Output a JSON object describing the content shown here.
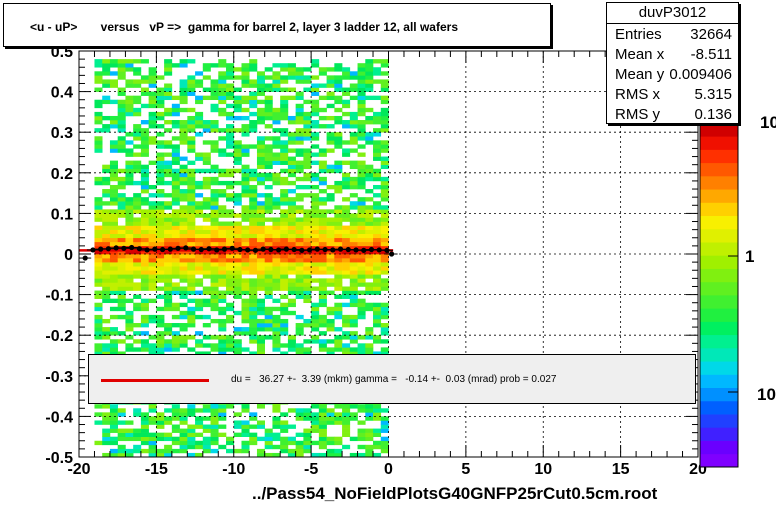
{
  "title": "<u - uP>       versus   vP =>  gamma for barrel 2, layer 3 ladder 12, all wafers",
  "footer": "../Pass54_NoFieldPlotsG40GNFP25rCut0.5cm.root",
  "stats": {
    "name": "duvP3012",
    "rows": [
      {
        "key": "Entries",
        "value": "32664"
      },
      {
        "key": "Mean x",
        "value": "-8.511"
      },
      {
        "key": "Mean y",
        "value": "0.009406"
      },
      {
        "key": "RMS x",
        "value": "5.315"
      },
      {
        "key": "RMS y",
        "value": "0.136"
      }
    ]
  },
  "legend": {
    "text": "du =   36.27 +-  3.39 (mkm) gamma =   -0.14 +-  0.03 (mrad) prob = 0.027",
    "line_color": "#e00000"
  },
  "colorbar": {
    "labels": [
      "10",
      "1",
      "10"
    ],
    "colors": [
      "#7f00ff",
      "#6a00ff",
      "#4020ff",
      "#2040ff",
      "#0060ff",
      "#0090ff",
      "#00b8ff",
      "#00d8e8",
      "#00e8b8",
      "#00f090",
      "#00f060",
      "#20f040",
      "#40f030",
      "#60f020",
      "#80f010",
      "#a0f000",
      "#c0f000",
      "#e0f000",
      "#f8f000",
      "#ffd000",
      "#ffa800",
      "#ff8000",
      "#ff5800",
      "#ff3000",
      "#f01000",
      "#d00000"
    ]
  },
  "chart_data": {
    "type": "heatmap",
    "title": "<u - uP>       versus   vP =>  gamma for barrel 2, layer 3 ladder 12, all wafers",
    "xlabel": "",
    "ylabel": "",
    "xlim": [
      -20,
      20
    ],
    "ylim": [
      -0.5,
      0.5
    ],
    "x_ticks": [
      "-20",
      "-15",
      "-10",
      "-5",
      "0",
      "5",
      "10",
      "15",
      "20"
    ],
    "y_ticks": [
      "-0.5",
      "-0.4",
      "-0.3",
      "-0.2",
      "-0.1",
      "0",
      "0.1",
      "0.2",
      "0.3",
      "0.4",
      "0.5"
    ],
    "grid": true,
    "profile": {
      "x": [
        -19.6,
        -19.1,
        -18.6,
        -18.1,
        -17.6,
        -17.1,
        -16.6,
        -16.1,
        -15.6,
        -15.1,
        -14.6,
        -14.1,
        -13.6,
        -13.1,
        -12.6,
        -12.1,
        -11.6,
        -11.1,
        -10.6,
        -10.1,
        -9.6,
        -9.1,
        -8.6,
        -8.1,
        -7.6,
        -7.1,
        -6.6,
        -6.1,
        -5.6,
        -5.1,
        -4.6,
        -4.1,
        -3.6,
        -3.1,
        -2.6,
        -2.1,
        -1.6,
        -1.1,
        -0.6,
        -0.1,
        0.2
      ],
      "y": [
        -0.01,
        0.01,
        0.012,
        0.013,
        0.015,
        0.014,
        0.016,
        0.013,
        0.01,
        0.012,
        0.011,
        0.012,
        0.014,
        0.015,
        0.012,
        0.011,
        0.013,
        0.01,
        0.012,
        0.014,
        0.011,
        0.01,
        0.009,
        0.012,
        0.011,
        0.01,
        0.012,
        0.011,
        0.009,
        0.01,
        0.012,
        0.011,
        0.01,
        0.012,
        0.011,
        0.01,
        0.009,
        0.011,
        0.01,
        0.009,
        0.0
      ]
    },
    "fit_line": {
      "x": [
        -20,
        0.3
      ],
      "y": [
        0.009,
        0.009
      ],
      "color": "#e00000"
    }
  }
}
